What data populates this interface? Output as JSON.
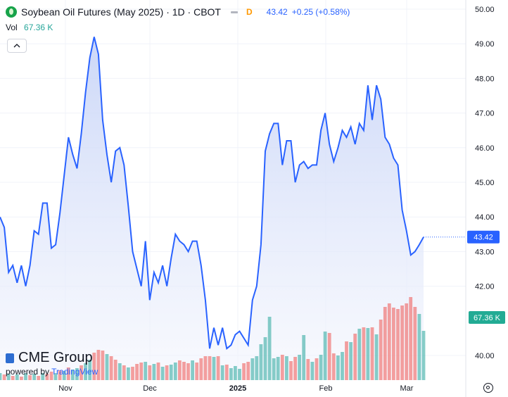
{
  "header": {
    "title": "Soybean Oil Futures (May 2025) · 1D · CBOT",
    "badge": "D",
    "last": "43.42",
    "change": "+0.25 (+0.58%)"
  },
  "volume": {
    "label": "Vol",
    "value": "67.36 K"
  },
  "collapse_icon": "chevron-up-icon",
  "brand": {
    "name": "CME Group",
    "powered_prefix": "powered by",
    "powered_name": "TradingView"
  },
  "settings_icon": "gear-icon",
  "colors": {
    "line": "#2962ff",
    "fill": "#dbe3fb",
    "vol_up": "#26a69a",
    "vol_down": "#ef5350",
    "price_label": "#2962ff",
    "vol_label": "#22ab94"
  },
  "chart_data": {
    "type": "area",
    "y_ticks": [
      "50.00",
      "49.00",
      "48.00",
      "47.00",
      "46.00",
      "45.00",
      "44.00",
      "43.00",
      "42.00",
      "40.00"
    ],
    "x_ticks": [
      "Nov",
      "Dec",
      "2025",
      "Feb",
      "Mar"
    ],
    "price_label": "43.42",
    "volume_label": "67.36 K",
    "ylim": [
      39.8,
      50.1
    ],
    "series": [
      {
        "values": [
          44.0,
          43.7,
          42.4,
          42.6,
          42.1,
          42.6,
          42.0,
          42.6,
          43.6,
          43.5,
          44.4,
          44.4,
          43.1,
          43.2,
          44.1,
          45.2,
          46.3,
          45.8,
          45.4,
          46.4,
          47.6,
          48.6,
          49.2,
          48.7,
          46.8,
          45.8,
          45.0,
          45.9,
          46.0,
          45.5,
          44.3,
          43.0,
          42.5,
          42.0,
          43.3,
          41.6,
          42.4,
          42.1,
          42.6,
          42.0,
          42.8,
          43.5,
          43.3,
          43.2,
          43.0,
          43.3,
          43.3,
          42.6,
          41.6,
          40.2,
          40.8,
          40.3,
          40.8,
          40.2,
          40.3,
          40.6,
          40.7,
          40.5,
          40.3,
          41.6,
          42.0,
          43.2,
          45.9,
          46.4,
          46.7,
          46.7,
          45.5,
          46.2,
          46.2,
          45.0,
          45.5,
          45.6,
          45.4,
          45.5,
          45.5,
          46.5,
          47.0,
          46.1,
          45.6,
          46.0,
          46.5,
          46.3,
          46.6,
          46.1,
          46.7,
          46.5,
          47.8,
          46.8,
          47.8,
          47.4,
          46.3,
          46.1,
          45.7,
          45.5,
          44.2,
          43.6,
          42.9,
          43.0,
          43.2,
          43.42
        ]
      }
    ],
    "volume_values": [
      10,
      8,
      9,
      6,
      8,
      5,
      10,
      7,
      9,
      6,
      10,
      9,
      12,
      10,
      14,
      13,
      18,
      15,
      17,
      21,
      24,
      29,
      39,
      43,
      42,
      37,
      34,
      29,
      24,
      21,
      18,
      19,
      23,
      25,
      26,
      21,
      23,
      25,
      19,
      21,
      22,
      25,
      28,
      26,
      24,
      28,
      25,
      31,
      34,
      34,
      33,
      34,
      21,
      22,
      17,
      20,
      16,
      24,
      26,
      31,
      34,
      51,
      61,
      90,
      31,
      33,
      36,
      34,
      27,
      33,
      36,
      64,
      30,
      26,
      31,
      36,
      69,
      67,
      38,
      35,
      40,
      55,
      54,
      66,
      73,
      75,
      74,
      75,
      65,
      86,
      104,
      109,
      103,
      101,
      106,
      109,
      118,
      104,
      94,
      70
    ],
    "volume_up": [
      1,
      0,
      1,
      0,
      1,
      0,
      1,
      0,
      1,
      0,
      1,
      0,
      0,
      1,
      0,
      1,
      0,
      1,
      1,
      0,
      1,
      1,
      0,
      0,
      0,
      1,
      0,
      0,
      1,
      0,
      1,
      0,
      0,
      0,
      1,
      0,
      1,
      0,
      1,
      0,
      1,
      1,
      0,
      0,
      0,
      1,
      0,
      0,
      0,
      0,
      1,
      0,
      1,
      0,
      1,
      1,
      1,
      0,
      0,
      1,
      1,
      1,
      1,
      1,
      1,
      1,
      0,
      1,
      0,
      0,
      1,
      1,
      0,
      1,
      0,
      1,
      1,
      0,
      0,
      1,
      1,
      0,
      1,
      0,
      1,
      0,
      1,
      0,
      1,
      0,
      0,
      0,
      0,
      0,
      0,
      0,
      0,
      0,
      1,
      1
    ]
  }
}
